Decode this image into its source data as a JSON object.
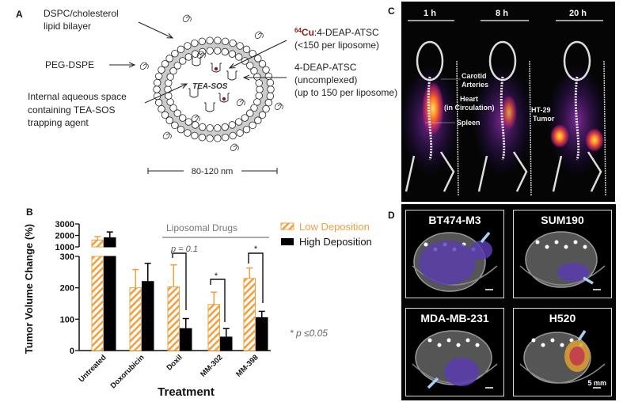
{
  "panel_a": {
    "letter": "A",
    "bilayer_label": [
      "DSPC/cholesterol",
      "lipid bilayer"
    ],
    "peg_label": "PEG-DSPE",
    "aqueous_label": [
      "Internal aqueous space",
      "containing TEA-SOS",
      "trapping agent"
    ],
    "cu_label_sup": "64",
    "cu_label_cu": "Cu",
    "cu_label_rest": ":4-DEAP-ATSC",
    "cu_sub": "(<150 per liposome)",
    "free_label": [
      "4-DEAP-ATSC",
      "(uncomplexed)",
      "(up to 150 per liposome)"
    ],
    "inner_label": "TEA-SOS",
    "scale_label": "80-120 nm"
  },
  "panel_b": {
    "letter": "B",
    "bracket_group_label": "Liposomal Drugs",
    "p_doxil": "p = 0.1",
    "star": "*",
    "footnote": "* p ≤0.05"
  },
  "chart_data": {
    "type": "bar",
    "title": "",
    "xlabel": "Treatment",
    "ylabel": "Tumor Volume Change (%)",
    "categories": [
      "Untreated",
      "Doxorubicin",
      "Doxil",
      "MM-302",
      "MM-398"
    ],
    "series": [
      {
        "name": "Low Deposition",
        "values": [
          1600,
          200,
          203,
          147,
          230
        ],
        "errors": [
          300,
          58,
          70,
          39,
          33
        ],
        "color": "#f0a040",
        "pattern": "hatched"
      },
      {
        "name": "High Deposition",
        "values": [
          1800,
          220,
          70,
          43,
          105
        ],
        "errors": [
          500,
          58,
          32,
          27,
          20
        ],
        "color": "#000000",
        "pattern": "solid"
      }
    ],
    "y_axis_broken": true,
    "y_ticks_lower": [
      0,
      100,
      200,
      300
    ],
    "y_ticks_upper": [
      1000,
      2000,
      3000
    ],
    "ylim_lower": [
      0,
      300
    ],
    "ylim_upper": [
      1000,
      3000
    ],
    "legend_placement": "top-right",
    "grid": false
  },
  "panel_c": {
    "letter": "C",
    "timepoints": [
      "1 h",
      "8 h",
      "20 h"
    ],
    "carotid": [
      "Carotid",
      "Arteries"
    ],
    "heart": [
      "Heart",
      "(in Circulation)"
    ],
    "spleen": "Spleen",
    "tumor": [
      "HT-29",
      "Tumor"
    ],
    "tumor_color": "#c8d890"
  },
  "panel_d": {
    "letter": "D",
    "models": [
      "BT474-M3",
      "SUM190",
      "MDA-MB-231",
      "H520"
    ],
    "scale_label": "5 mm"
  }
}
